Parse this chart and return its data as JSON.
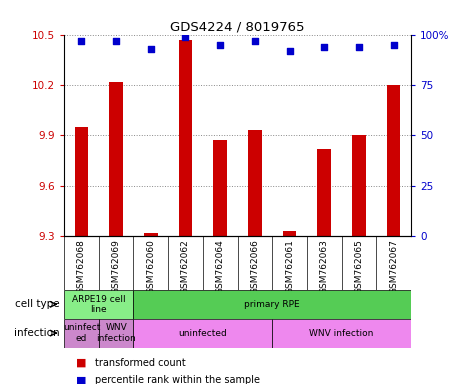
{
  "title": "GDS4224 / 8019765",
  "samples": [
    "GSM762068",
    "GSM762069",
    "GSM762060",
    "GSM762062",
    "GSM762064",
    "GSM762066",
    "GSM762061",
    "GSM762063",
    "GSM762065",
    "GSM762067"
  ],
  "transformed_counts": [
    9.95,
    10.22,
    9.32,
    10.47,
    9.87,
    9.93,
    9.33,
    9.82,
    9.9,
    10.2
  ],
  "percentile_ranks": [
    97,
    97,
    93,
    99,
    95,
    97,
    92,
    94,
    94,
    95
  ],
  "ylim": [
    9.3,
    10.5
  ],
  "yticks": [
    9.3,
    9.6,
    9.9,
    10.2,
    10.5
  ],
  "right_yticks": [
    0,
    25,
    50,
    75,
    100
  ],
  "right_ylim": [
    0,
    100
  ],
  "bar_color": "#cc0000",
  "dot_color": "#0000cc",
  "grid_color": "#888888",
  "left_tick_color": "#cc0000",
  "right_tick_color": "#0000cc",
  "cell_type_labels": [
    {
      "text": "ARPE19 cell\nline",
      "start": 0,
      "end": 2,
      "color": "#88ee88"
    },
    {
      "text": "primary RPE",
      "start": 2,
      "end": 10,
      "color": "#55cc55"
    }
  ],
  "infection_labels": [
    {
      "text": "uninfect\ned",
      "start": 0,
      "end": 1,
      "color": "#cc88cc"
    },
    {
      "text": "WNV\ninfection",
      "start": 1,
      "end": 2,
      "color": "#cc88cc"
    },
    {
      "text": "uninfected",
      "start": 2,
      "end": 6,
      "color": "#ee88ee"
    },
    {
      "text": "WNV infection",
      "start": 6,
      "end": 10,
      "color": "#ee88ee"
    }
  ],
  "cell_type_row_label": "cell type",
  "infection_row_label": "infection",
  "legend_items": [
    {
      "label": "transformed count",
      "color": "#cc0000"
    },
    {
      "label": "percentile rank within the sample",
      "color": "#0000cc"
    }
  ]
}
